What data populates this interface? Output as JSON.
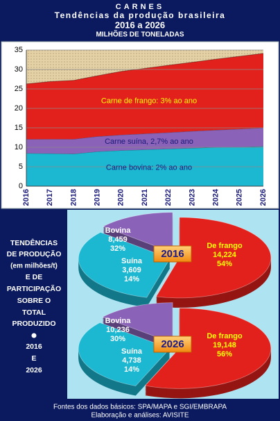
{
  "header": {
    "title": "CARNES",
    "subtitle": "Tendências da produção brasileira",
    "period": "2016 a 2026",
    "unit": "MILHÕES DE TONELADAS"
  },
  "chart_data": [
    {
      "type": "area",
      "categories": [
        "2016",
        "2017",
        "2018",
        "2019",
        "2020",
        "2021",
        "2022",
        "2023",
        "2024",
        "2025",
        "2026"
      ],
      "series": [
        {
          "name": "Carne bovina",
          "color": "#1cb8d2",
          "values": [
            8.459,
            8.4,
            8.3,
            8.9,
            9.2,
            9.4,
            9.6,
            9.8,
            10.0,
            10.1,
            10.236
          ]
        },
        {
          "name": "Carne suína",
          "color": "#8a62b8",
          "values": [
            3.609,
            3.7,
            3.8,
            3.9,
            4.0,
            4.1,
            4.2,
            4.35,
            4.45,
            4.6,
            4.738
          ]
        },
        {
          "name": "Carne de frango",
          "color": "#e3211c",
          "values": [
            14.224,
            14.8,
            15.1,
            15.6,
            16.3,
            16.8,
            17.3,
            17.7,
            18.2,
            18.7,
            19.148
          ]
        }
      ],
      "annotations": [
        {
          "text": "Carne bovina: 2% ao ano",
          "series": 0,
          "color": "#1a1a7a"
        },
        {
          "text": "Carne suína, 2,7% ao ano",
          "series": 1,
          "color": "#1a1a7a"
        },
        {
          "text": "Carne de frango: 3% ao ano",
          "series": 2,
          "color": "#ffff00"
        }
      ],
      "stacked": true,
      "ylim": [
        0,
        35
      ],
      "yticks": [
        0,
        5,
        10,
        15,
        20,
        25,
        30,
        35
      ],
      "grid": true
    },
    {
      "type": "pie",
      "title": "2016",
      "categories": [
        "Bovina",
        "Suína",
        "De frango"
      ],
      "values": [
        8.459,
        3.609,
        14.224
      ],
      "value_labels": [
        "8,459",
        "3,609",
        "14,224"
      ],
      "percent_labels": [
        "32%",
        "14%",
        "54%"
      ],
      "colors": [
        "#1cb8d2",
        "#8a62b8",
        "#e3211c"
      ],
      "label_colors": [
        "#ffffff",
        "#ffffff",
        "#ffff00"
      ]
    },
    {
      "type": "pie",
      "title": "2026",
      "categories": [
        "Bovina",
        "Suína",
        "De frango"
      ],
      "values": [
        10.236,
        4.738,
        19.148
      ],
      "value_labels": [
        "10,236",
        "4,738",
        "19,148"
      ],
      "percent_labels": [
        "30%",
        "14%",
        "56%"
      ],
      "colors": [
        "#1cb8d2",
        "#8a62b8",
        "#e3211c"
      ],
      "label_colors": [
        "#ffffff",
        "#ffffff",
        "#ffff00"
      ]
    }
  ],
  "side_panel": {
    "lines": [
      "TENDÊNCIAS",
      "DE PRODUÇÃO",
      "(em milhões/t)",
      "E DE",
      "PARTICIPAÇÃO",
      "SOBRE O",
      "TOTAL",
      "PRODUZIDO",
      "2016",
      "E",
      "2026"
    ]
  },
  "footer": {
    "sources": "Fontes dos dados básicos: SPA/MAPA e SGI/EMBRAPA",
    "credits": "Elaboração e análises: AVISITE"
  }
}
